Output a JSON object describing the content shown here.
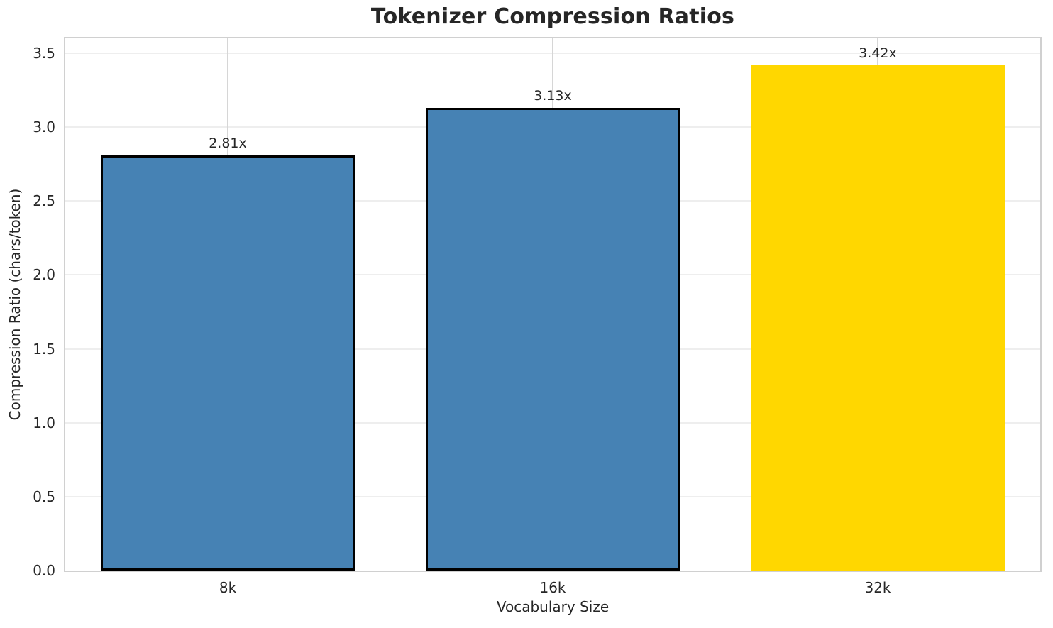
{
  "chart_data": {
    "type": "bar",
    "title": "Tokenizer Compression Ratios",
    "xlabel": "Vocabulary Size",
    "ylabel": "Compression Ratio (chars/token)",
    "categories": [
      "8k",
      "16k",
      "32k"
    ],
    "values": [
      2.81,
      3.13,
      3.42
    ],
    "bar_labels": [
      "2.81x",
      "3.13x",
      "3.42x"
    ],
    "bar_colors": [
      "#4682b4",
      "#4682b4",
      "#ffd700"
    ],
    "bar_edge_colors": [
      "#000000",
      "#000000",
      "none"
    ],
    "bar_width_fraction": 0.78,
    "ylim": [
      0,
      3.6
    ],
    "yticks": [
      "0.0",
      "0.5",
      "1.0",
      "1.5",
      "2.0",
      "2.5",
      "3.0",
      "3.5"
    ],
    "grid": true,
    "grid_axes": "both",
    "legend": "none"
  },
  "colors": {
    "bar_blue": "#4682b4",
    "bar_gold": "#ffd700",
    "bar_edge": "#000000",
    "text": "#262626",
    "spine": "#d0d0d0",
    "grid_horizontal": "#eeeeee",
    "grid_vertical": "#d6d6d6",
    "background": "#ffffff"
  }
}
